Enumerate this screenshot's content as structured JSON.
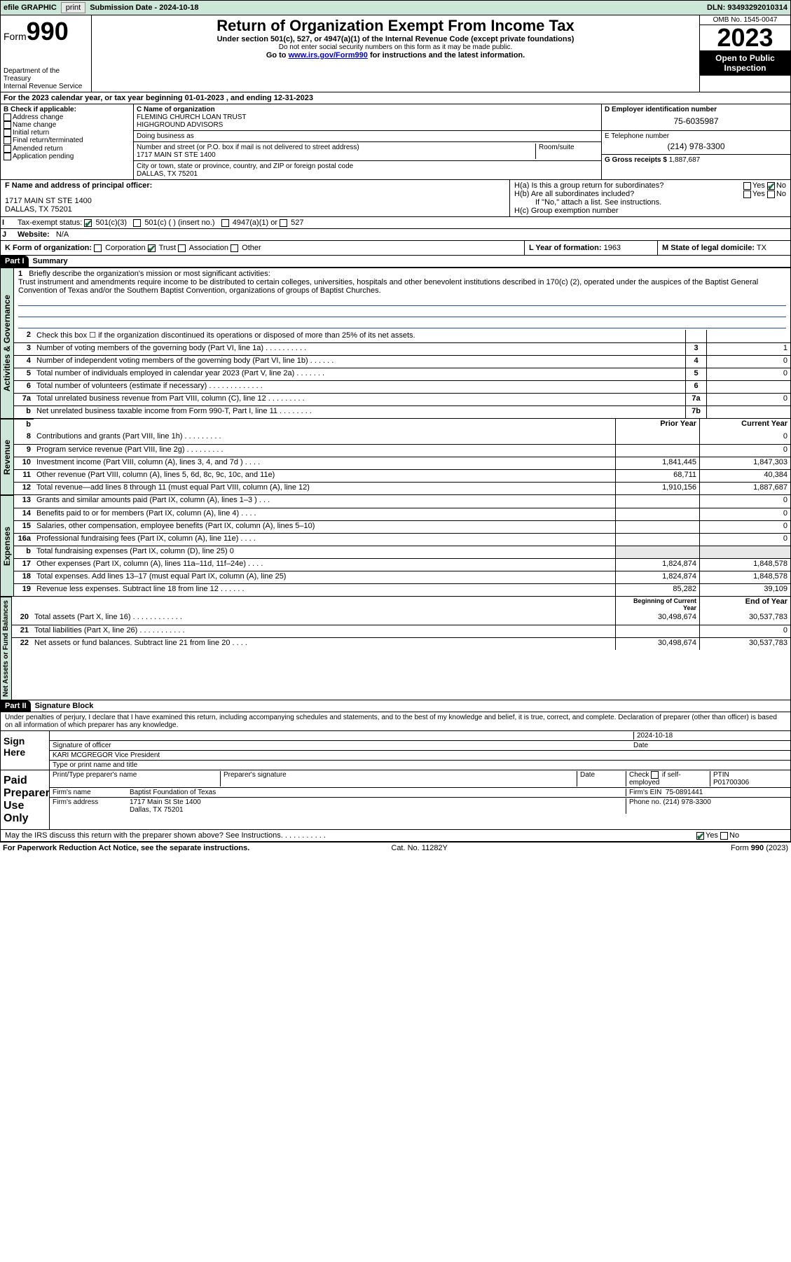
{
  "topbar": {
    "efile": "efile GRAPHIC",
    "print": "print",
    "sub_lbl": "Submission Date - ",
    "sub_date": "2024-10-18",
    "dln": "DLN: 93493292010314"
  },
  "header": {
    "form_word": "Form",
    "form_num": "990",
    "dept": "Department of the Treasury",
    "irs": "Internal Revenue Service",
    "title": "Return of Organization Exempt From Income Tax",
    "sub1": "Under section 501(c), 527, or 4947(a)(1) of the Internal Revenue Code (except private foundations)",
    "sub2": "Do not enter social security numbers on this form as it may be made public.",
    "sub3_pre": "Go to ",
    "sub3_link": "www.irs.gov/Form990",
    "sub3_post": " for instructions and the latest information.",
    "omb": "OMB No. 1545-0047",
    "year": "2023",
    "open_pub": "Open to Public Inspection"
  },
  "line_a": "For the 2023 calendar year, or tax year beginning 01-01-2023   , and ending 12-31-2023",
  "box_b": {
    "title": "B Check if applicable:",
    "items": [
      "Address change",
      "Name change",
      "Initial return",
      "Final return/terminated",
      "Amended return",
      "Application pending"
    ]
  },
  "box_c": {
    "lbl": "C Name of organization",
    "name1": "FLEMING CHURCH LOAN TRUST",
    "name2": "HIGHGROUND ADVISORS",
    "dba_lbl": "Doing business as",
    "addr_lbl": "Number and street (or P.O. box if mail is not delivered to street address)",
    "room_lbl": "Room/suite",
    "addr": "1717 MAIN ST STE 1400",
    "city_lbl": "City or town, state or province, country, and ZIP or foreign postal code",
    "city": "DALLAS, TX  75201"
  },
  "box_d": {
    "lbl": "D Employer identification number",
    "val": "75-6035987"
  },
  "box_e": {
    "lbl": "E Telephone number",
    "val": "(214) 978-3300"
  },
  "box_g": {
    "lbl": "G Gross receipts $",
    "val": "1,887,687"
  },
  "box_f": {
    "lbl": "F Name and address of principal officer:",
    "addr1": "1717 MAIN ST STE 1400",
    "addr2": "DALLAS, TX  75201"
  },
  "box_h": {
    "ha": "H(a)  Is this a group return for subordinates?",
    "hb": "H(b)  Are all subordinates included?",
    "hb_note": "If \"No,\" attach a list. See instructions.",
    "hc": "H(c)  Group exemption number",
    "yes": "Yes",
    "no": "No"
  },
  "box_i": {
    "lbl": "Tax-exempt status:",
    "o1": "501(c)(3)",
    "o2": "501(c) (  ) (insert no.)",
    "o3": "4947(a)(1) or",
    "o4": "527"
  },
  "box_j": {
    "lbl": "Website:",
    "val": "N/A"
  },
  "box_k": {
    "lbl": "K Form of organization:",
    "o1": "Corporation",
    "o2": "Trust",
    "o3": "Association",
    "o4": "Other"
  },
  "box_l": {
    "lbl": "L Year of formation:",
    "val": "1963"
  },
  "box_m": {
    "lbl": "M State of legal domicile:",
    "val": "TX"
  },
  "part1": {
    "hdr": "Part I",
    "title": "Summary"
  },
  "mission": {
    "num": "1",
    "lbl": "Briefly describe the organization's mission or most significant activities:",
    "txt": "Trust instrument and amendments require income to be distributed to certain colleges, universities, hospitals and other benevolent institutions described in 170(c) (2), operated under the auspices of the Baptist General Convention of Texas and/or the Southern Baptist Convention, organizations of groups of Baptist Churches."
  },
  "gov_lines": [
    {
      "n": "2",
      "t": "Check this box  ☐  if the organization discontinued its operations or disposed of more than 25% of its net assets.",
      "box": "",
      "v": ""
    },
    {
      "n": "3",
      "t": "Number of voting members of the governing body (Part VI, line 1a)   .    .    .    .    .    .    .    .    .    .",
      "box": "3",
      "v": "1"
    },
    {
      "n": "4",
      "t": "Number of independent voting members of the governing body (Part VI, line 1b)    .    .    .    .    .    .",
      "box": "4",
      "v": "0"
    },
    {
      "n": "5",
      "t": "Total number of individuals employed in calendar year 2023 (Part V, line 2a)   .    .    .    .    .    .    .",
      "box": "5",
      "v": "0"
    },
    {
      "n": "6",
      "t": "Total number of volunteers (estimate if necessary)   .    .    .    .    .    .    .    .    .    .    .    .    .",
      "box": "6",
      "v": ""
    },
    {
      "n": "7a",
      "t": "Total unrelated business revenue from Part VIII, column (C), line 12   .    .    .    .    .    .    .    .    .",
      "box": "7a",
      "v": "0"
    },
    {
      "n": "b",
      "t": "Net unrelated business taxable income from Form 990-T, Part I, line 11    .    .    .    .    .    .    .    .",
      "box": "7b",
      "v": ""
    }
  ],
  "rev_hdr": {
    "prior": "Prior Year",
    "curr": "Current Year"
  },
  "rev_lines": [
    {
      "n": "8",
      "t": "Contributions and grants (Part VIII, line 1h)   .    .    .    .    .    .    .    .    .",
      "p": "",
      "c": "0"
    },
    {
      "n": "9",
      "t": "Program service revenue (Part VIII, line 2g)   .    .    .    .    .    .    .    .    .",
      "p": "",
      "c": "0"
    },
    {
      "n": "10",
      "t": "Investment income (Part VIII, column (A), lines 3, 4, and 7d )   .    .    .    .",
      "p": "1,841,445",
      "c": "1,847,303"
    },
    {
      "n": "11",
      "t": "Other revenue (Part VIII, column (A), lines 5, 6d, 8c, 9c, 10c, and 11e)",
      "p": "68,711",
      "c": "40,384"
    },
    {
      "n": "12",
      "t": "Total revenue—add lines 8 through 11 (must equal Part VIII, column (A), line 12)",
      "p": "1,910,156",
      "c": "1,887,687"
    }
  ],
  "exp_lines": [
    {
      "n": "13",
      "t": "Grants and similar amounts paid (Part IX, column (A), lines 1–3 )   .    .    .",
      "p": "",
      "c": "0"
    },
    {
      "n": "14",
      "t": "Benefits paid to or for members (Part IX, column (A), line 4)   .    .    .    .",
      "p": "",
      "c": "0"
    },
    {
      "n": "15",
      "t": "Salaries, other compensation, employee benefits (Part IX, column (A), lines 5–10)",
      "p": "",
      "c": "0"
    },
    {
      "n": "16a",
      "t": "Professional fundraising fees (Part IX, column (A), line 11e)   .    .    .    .",
      "p": "",
      "c": "0"
    },
    {
      "n": "b",
      "t": "Total fundraising expenses (Part IX, column (D), line 25) 0",
      "p": "—shade—",
      "c": "—shade—"
    },
    {
      "n": "17",
      "t": "Other expenses (Part IX, column (A), lines 11a–11d, 11f–24e)   .    .    .    .",
      "p": "1,824,874",
      "c": "1,848,578"
    },
    {
      "n": "18",
      "t": "Total expenses. Add lines 13–17 (must equal Part IX, column (A), line 25)",
      "p": "1,824,874",
      "c": "1,848,578"
    },
    {
      "n": "19",
      "t": "Revenue less expenses. Subtract line 18 from line 12    .    .    .    .    .    .",
      "p": "85,282",
      "c": "39,109"
    }
  ],
  "na_hdr": {
    "beg": "Beginning of Current Year",
    "end": "End of Year"
  },
  "na_lines": [
    {
      "n": "20",
      "t": "Total assets (Part X, line 16)   .    .    .    .    .    .    .    .    .    .    .    .",
      "p": "30,498,674",
      "c": "30,537,783"
    },
    {
      "n": "21",
      "t": "Total liabilities (Part X, line 26)   .    .    .    .    .    .    .    .    .    .    .",
      "p": "",
      "c": "0"
    },
    {
      "n": "22",
      "t": "Net assets or fund balances. Subtract line 21 from line 20    .    .    .    .",
      "p": "30,498,674",
      "c": "30,537,783"
    }
  ],
  "part2": {
    "hdr": "Part II",
    "title": "Signature Block"
  },
  "sig_decl": "Under penalties of perjury, I declare that I have examined this return, including accompanying schedules and statements, and to the best of my knowledge and belief, it is true, correct, and complete. Declaration of preparer (other than officer) is based on all information of which preparer has any knowledge.",
  "sign_here": {
    "lbl": "Sign Here",
    "sig_of": "Signature of officer",
    "date_lbl": "Date",
    "date": "2024-10-18",
    "name": "KARI MCGREGOR  Vice President",
    "type_lbl": "Type or print name and title"
  },
  "paid_prep": {
    "lbl": "Paid Preparer Use Only",
    "h1": "Print/Type preparer's name",
    "h2": "Preparer's signature",
    "h3": "Date",
    "h4_pre": "Check",
    "h4_post": "if self-employed",
    "ptin_lbl": "PTIN",
    "ptin": "P01700306",
    "firm_name_lbl": "Firm's name",
    "firm_name": "Baptist Foundation of Texas",
    "firm_ein_lbl": "Firm's EIN",
    "firm_ein": "75-0891441",
    "firm_addr_lbl": "Firm's address",
    "firm_addr1": "1717 Main St Ste 1400",
    "firm_addr2": "Dallas, TX  75201",
    "phone_lbl": "Phone no.",
    "phone": "(214) 978-3300"
  },
  "discuss": {
    "q": "May the IRS discuss this return with the preparer shown above? See Instructions.   .    .    .    .    .    .    .    .    .    .",
    "yes": "Yes",
    "no": "No"
  },
  "footer": {
    "l": "For Paperwork Reduction Act Notice, see the separate instructions.",
    "m": "Cat. No. 11282Y",
    "r": "Form 990 (2023)"
  },
  "vtabs": {
    "gov": "Activities & Governance",
    "rev": "Revenue",
    "exp": "Expenses",
    "na": "Net Assets or Fund Balances"
  },
  "colors": {
    "green_bg": "#cce6d8",
    "link": "#0000cc",
    "check": "#1a6b3a"
  }
}
